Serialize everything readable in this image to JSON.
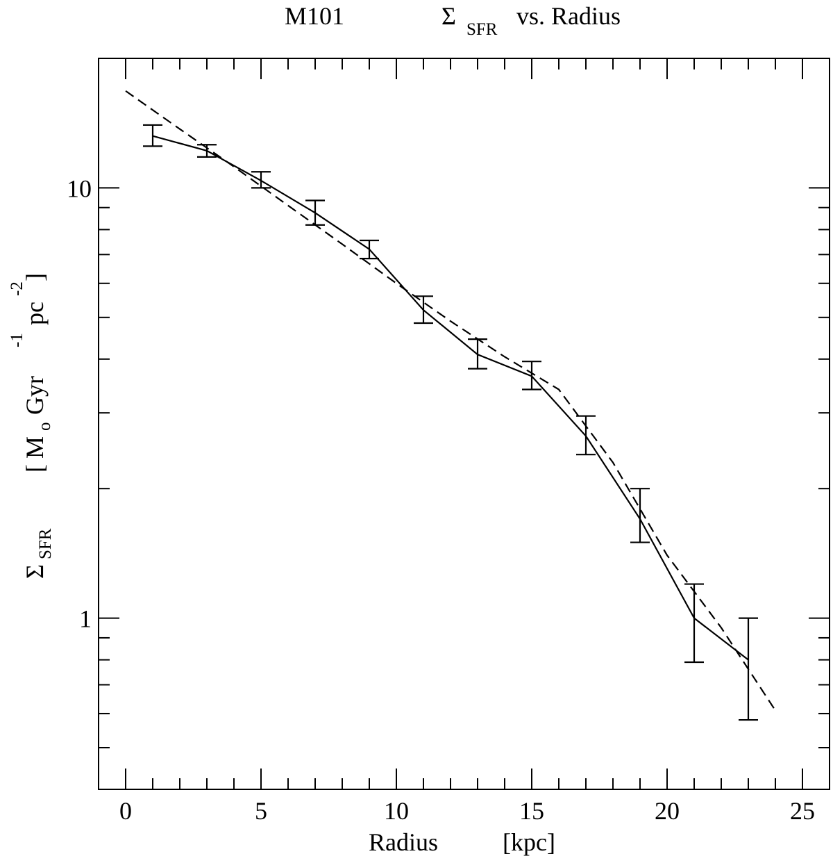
{
  "chart_data": {
    "type": "line",
    "title": {
      "left": "M101",
      "sigma": "Σ",
      "sub": "SFR",
      "rest": "vs.  Radius"
    },
    "xlabel": {
      "name": "Radius",
      "unit": "[kpc]"
    },
    "ylabel": {
      "sigma": "Σ",
      "sub": "SFR",
      "bracket_open": "[",
      "msun": "M",
      "msun_sub": "o",
      "gyr": "Gyr",
      "gyr_exp": "-1",
      "pc": "pc",
      "pc_exp": "-2",
      "bracket_close": "]"
    },
    "xlim": [
      -1,
      26
    ],
    "ylim": [
      0.4,
      20
    ],
    "y_scale": "log",
    "x_ticks": [
      0,
      5,
      10,
      15,
      20,
      25
    ],
    "x_tick_labels": [
      "0",
      "5",
      "10",
      "15",
      "20",
      "25"
    ],
    "y_ticks": [
      1,
      10
    ],
    "y_tick_labels": [
      "1",
      "10"
    ],
    "grid": false,
    "series": [
      {
        "style": "solid",
        "error_bars": true,
        "x": [
          1,
          3,
          5,
          7,
          9,
          11,
          13,
          15,
          17,
          19,
          21,
          23
        ],
        "y": [
          13.2,
          12.2,
          10.4,
          8.75,
          7.2,
          5.2,
          4.1,
          3.65,
          2.65,
          1.7,
          1.0,
          0.8
        ],
        "y_low": [
          12.5,
          11.8,
          10.0,
          8.2,
          6.85,
          4.85,
          3.8,
          3.4,
          2.4,
          1.5,
          0.79,
          0.58
        ],
        "y_high": [
          14.0,
          12.6,
          10.9,
          9.35,
          7.55,
          5.6,
          4.45,
          3.95,
          2.95,
          2.0,
          1.2,
          1.0
        ]
      },
      {
        "style": "dashed",
        "error_bars": false,
        "x": [
          0,
          2,
          4,
          6,
          8,
          10,
          12,
          14,
          16,
          18,
          20,
          22,
          24
        ],
        "y": [
          16.8,
          13.7,
          11.2,
          9.1,
          7.4,
          6.0,
          4.9,
          4.05,
          3.4,
          2.3,
          1.4,
          0.95,
          0.61
        ]
      }
    ]
  }
}
